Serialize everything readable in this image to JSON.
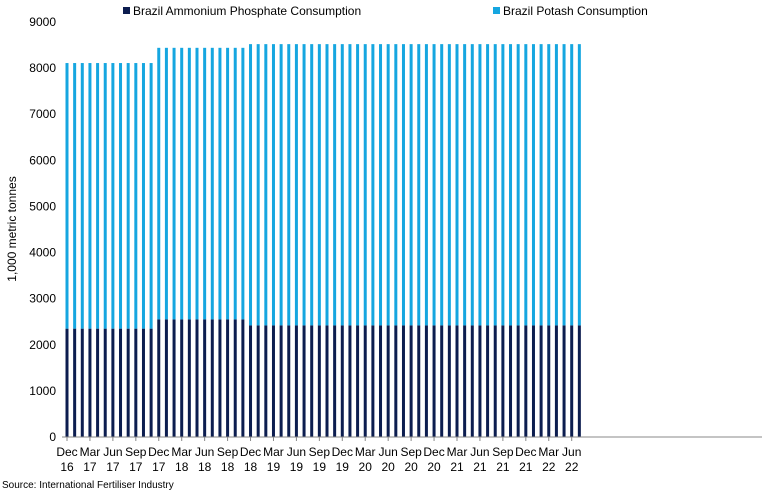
{
  "chart_data": {
    "type": "bar",
    "stacked": true,
    "ylabel": "1,000 metric tonnes",
    "ylim": [
      0,
      9000
    ],
    "yticks": [
      0,
      1000,
      2000,
      3000,
      4000,
      5000,
      6000,
      7000,
      8000,
      9000
    ],
    "grid": false,
    "legend_position": "top",
    "source": "Source: International Fertiliser Industry",
    "start_month": "Dec 2016",
    "tick_labels": [
      {
        "month": "Dec",
        "year": "16"
      },
      {
        "month": "Mar",
        "year": "17"
      },
      {
        "month": "Jun",
        "year": "17"
      },
      {
        "month": "Sep",
        "year": "17"
      },
      {
        "month": "Dec",
        "year": "17"
      },
      {
        "month": "Mar",
        "year": "18"
      },
      {
        "month": "Jun",
        "year": "18"
      },
      {
        "month": "Sep",
        "year": "18"
      },
      {
        "month": "Dec",
        "year": "18"
      },
      {
        "month": "Mar",
        "year": "19"
      },
      {
        "month": "Jun",
        "year": "19"
      },
      {
        "month": "Sep",
        "year": "19"
      },
      {
        "month": "Dec",
        "year": "19"
      },
      {
        "month": "Mar",
        "year": "20"
      },
      {
        "month": "Jun",
        "year": "20"
      },
      {
        "month": "Sep",
        "year": "20"
      },
      {
        "month": "Dec",
        "year": "20"
      },
      {
        "month": "Mar",
        "year": "21"
      },
      {
        "month": "Jun",
        "year": "21"
      },
      {
        "month": "Sep",
        "year": "21"
      },
      {
        "month": "Dec",
        "year": "21"
      },
      {
        "month": "Mar",
        "year": "22"
      },
      {
        "month": "Jun",
        "year": "22"
      }
    ],
    "periods": [
      {
        "from": "Dec 2016",
        "to": "Nov 2017",
        "ammonium_phosphate": 2350,
        "potash": 5760
      },
      {
        "from": "Dec 2017",
        "to": "Nov 2018",
        "ammonium_phosphate": 2550,
        "potash": 5890
      },
      {
        "from": "Dec 2018",
        "to": "Jul 2022",
        "ammonium_phosphate": 2420,
        "potash": 6100
      }
    ],
    "series": [
      {
        "name": "Brazil Ammonium Phosphate Consumption",
        "key": "ammonium_phosphate",
        "color": "#0c1d4f"
      },
      {
        "name": "Brazil Potash Consumption",
        "key": "potash",
        "color": "#15a6e0"
      }
    ]
  }
}
